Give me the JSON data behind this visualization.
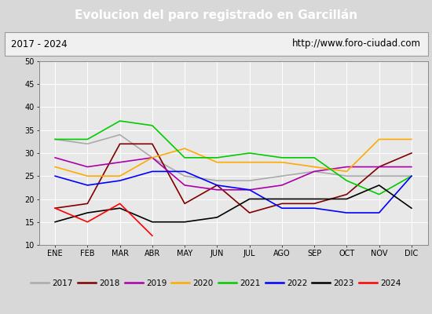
{
  "title": "Evolucion del paro registrado en Garcillán",
  "subtitle_left": "2017 - 2024",
  "subtitle_right": "http://www.foro-ciudad.com",
  "ylim": [
    10,
    50
  ],
  "months": [
    "ENE",
    "FEB",
    "MAR",
    "ABR",
    "MAY",
    "JUN",
    "JUL",
    "AGO",
    "SEP",
    "OCT",
    "NOV",
    "DIC"
  ],
  "series": {
    "2017": [
      33,
      32,
      34,
      29,
      25,
      24,
      24,
      25,
      26,
      25,
      25,
      25
    ],
    "2018": [
      18,
      19,
      32,
      32,
      19,
      23,
      17,
      19,
      19,
      21,
      27,
      30
    ],
    "2019": [
      29,
      27,
      28,
      29,
      23,
      22,
      22,
      23,
      26,
      27,
      27,
      27
    ],
    "2020": [
      27,
      25,
      25,
      29,
      31,
      28,
      28,
      28,
      27,
      26,
      33,
      33
    ],
    "2021": [
      33,
      33,
      37,
      36,
      29,
      29,
      30,
      29,
      29,
      24,
      21,
      25
    ],
    "2022": [
      25,
      23,
      24,
      26,
      26,
      23,
      22,
      18,
      18,
      17,
      17,
      25
    ],
    "2023": [
      15,
      17,
      18,
      15,
      15,
      16,
      20,
      20,
      20,
      20,
      23,
      18
    ],
    "2024": [
      18,
      15,
      19,
      12,
      null,
      null,
      null,
      null,
      null,
      null,
      null,
      null
    ]
  },
  "colors": {
    "2017": "#aaaaaa",
    "2018": "#800000",
    "2019": "#aa00aa",
    "2020": "#ffaa00",
    "2021": "#00cc00",
    "2022": "#0000ff",
    "2023": "#000000",
    "2024": "#ff0000"
  },
  "background_color": "#d8d8d8",
  "plot_bg_color": "#e8e8e8",
  "title_bg_color": "#4f81bd",
  "title_text_color": "#ffffff",
  "grid_color": "#ffffff",
  "yticks": [
    10,
    15,
    20,
    25,
    30,
    35,
    40,
    45,
    50
  ]
}
